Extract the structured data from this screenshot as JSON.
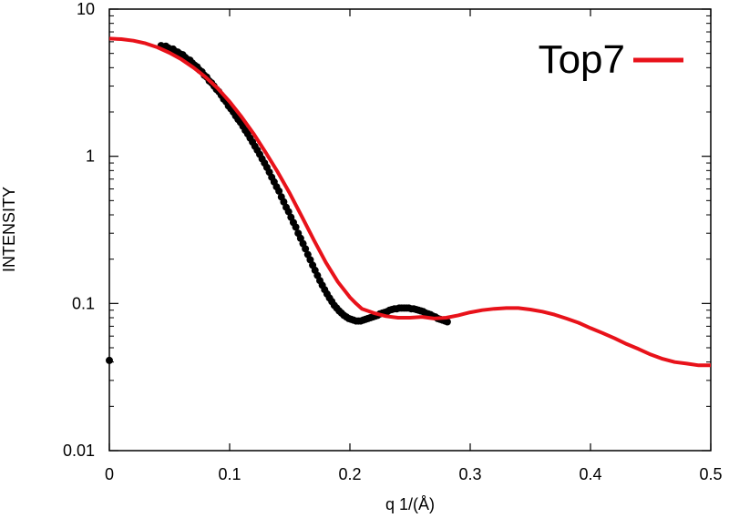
{
  "chart_data": {
    "type": "scatter",
    "title": "",
    "xlabel": "q 1/(Å)",
    "ylabel": "INTENSITY",
    "xlim": [
      0,
      0.5
    ],
    "ylim": [
      0.01,
      10
    ],
    "yscale": "log",
    "grid": false,
    "legend_position": "top-right",
    "x_ticks": [
      {
        "value": 0,
        "label": "0"
      },
      {
        "value": 0.1,
        "label": "0.1"
      },
      {
        "value": 0.2,
        "label": "0.2"
      },
      {
        "value": 0.3,
        "label": "0.3"
      },
      {
        "value": 0.4,
        "label": "0.4"
      },
      {
        "value": 0.5,
        "label": "0.5"
      }
    ],
    "y_ticks": [
      {
        "value": 0.01,
        "label": "0.01"
      },
      {
        "value": 0.1,
        "label": "0.1"
      },
      {
        "value": 1,
        "label": "1"
      },
      {
        "value": 10,
        "label": "10"
      }
    ],
    "series": [
      {
        "name": "",
        "kind": "points",
        "color": "#000000",
        "points": [
          [
            0.0,
            0.041
          ],
          [
            0.043,
            5.65
          ],
          [
            0.045,
            5.5
          ],
          [
            0.047,
            5.6
          ],
          [
            0.049,
            5.45
          ],
          [
            0.051,
            5.3
          ],
          [
            0.053,
            5.35
          ],
          [
            0.055,
            5.15
          ],
          [
            0.057,
            5.1
          ],
          [
            0.059,
            4.95
          ],
          [
            0.061,
            4.9
          ],
          [
            0.063,
            4.7
          ],
          [
            0.065,
            4.55
          ],
          [
            0.067,
            4.5
          ],
          [
            0.069,
            4.3
          ],
          [
            0.071,
            4.15
          ],
          [
            0.073,
            4.05
          ],
          [
            0.075,
            3.85
          ],
          [
            0.077,
            3.75
          ],
          [
            0.079,
            3.55
          ],
          [
            0.081,
            3.45
          ],
          [
            0.083,
            3.25
          ],
          [
            0.085,
            3.15
          ],
          [
            0.087,
            3.0
          ],
          [
            0.089,
            2.85
          ],
          [
            0.091,
            2.75
          ],
          [
            0.093,
            2.6
          ],
          [
            0.095,
            2.45
          ],
          [
            0.097,
            2.35
          ],
          [
            0.099,
            2.2
          ],
          [
            0.101,
            2.1
          ],
          [
            0.103,
            2.0
          ],
          [
            0.105,
            1.88
          ],
          [
            0.107,
            1.78
          ],
          [
            0.109,
            1.7
          ],
          [
            0.111,
            1.6
          ],
          [
            0.113,
            1.5
          ],
          [
            0.115,
            1.42
          ],
          [
            0.117,
            1.33
          ],
          [
            0.119,
            1.25
          ],
          [
            0.121,
            1.17
          ],
          [
            0.123,
            1.1
          ],
          [
            0.125,
            1.03
          ],
          [
            0.127,
            0.96
          ],
          [
            0.129,
            0.9
          ],
          [
            0.131,
            0.84
          ],
          [
            0.133,
            0.78
          ],
          [
            0.135,
            0.72
          ],
          [
            0.137,
            0.67
          ],
          [
            0.139,
            0.62
          ],
          [
            0.141,
            0.58
          ],
          [
            0.143,
            0.53
          ],
          [
            0.145,
            0.49
          ],
          [
            0.147,
            0.45
          ],
          [
            0.149,
            0.42
          ],
          [
            0.151,
            0.385
          ],
          [
            0.153,
            0.355
          ],
          [
            0.155,
            0.33
          ],
          [
            0.157,
            0.3
          ],
          [
            0.159,
            0.277
          ],
          [
            0.161,
            0.255
          ],
          [
            0.163,
            0.235
          ],
          [
            0.165,
            0.215
          ],
          [
            0.167,
            0.198
          ],
          [
            0.169,
            0.182
          ],
          [
            0.171,
            0.168
          ],
          [
            0.173,
            0.155
          ],
          [
            0.175,
            0.143
          ],
          [
            0.177,
            0.133
          ],
          [
            0.179,
            0.124
          ],
          [
            0.181,
            0.116
          ],
          [
            0.183,
            0.109
          ],
          [
            0.185,
            0.103
          ],
          [
            0.187,
            0.097
          ],
          [
            0.189,
            0.093
          ],
          [
            0.191,
            0.089
          ],
          [
            0.193,
            0.086
          ],
          [
            0.195,
            0.083
          ],
          [
            0.197,
            0.081
          ],
          [
            0.199,
            0.079
          ],
          [
            0.201,
            0.078
          ],
          [
            0.203,
            0.077
          ],
          [
            0.205,
            0.076
          ],
          [
            0.207,
            0.076
          ],
          [
            0.209,
            0.076
          ],
          [
            0.211,
            0.077
          ],
          [
            0.213,
            0.078
          ],
          [
            0.215,
            0.079
          ],
          [
            0.217,
            0.08
          ],
          [
            0.219,
            0.081
          ],
          [
            0.221,
            0.082
          ],
          [
            0.223,
            0.083
          ],
          [
            0.225,
            0.085
          ],
          [
            0.227,
            0.086
          ],
          [
            0.229,
            0.087
          ],
          [
            0.231,
            0.088
          ],
          [
            0.233,
            0.09
          ],
          [
            0.235,
            0.091
          ],
          [
            0.237,
            0.092
          ],
          [
            0.239,
            0.092
          ],
          [
            0.241,
            0.093
          ],
          [
            0.243,
            0.093
          ],
          [
            0.245,
            0.093
          ],
          [
            0.247,
            0.093
          ],
          [
            0.249,
            0.093
          ],
          [
            0.251,
            0.092
          ],
          [
            0.253,
            0.092
          ],
          [
            0.255,
            0.091
          ],
          [
            0.257,
            0.09
          ],
          [
            0.259,
            0.089
          ],
          [
            0.261,
            0.088
          ],
          [
            0.263,
            0.086
          ],
          [
            0.265,
            0.085
          ],
          [
            0.267,
            0.084
          ],
          [
            0.269,
            0.082
          ],
          [
            0.271,
            0.081
          ],
          [
            0.273,
            0.079
          ],
          [
            0.275,
            0.078
          ],
          [
            0.277,
            0.077
          ],
          [
            0.279,
            0.076
          ],
          [
            0.281,
            0.075
          ]
        ]
      },
      {
        "name": "Top7",
        "kind": "line",
        "color": "#e8121a",
        "points": [
          [
            0.0,
            6.3
          ],
          [
            0.01,
            6.25
          ],
          [
            0.02,
            6.1
          ],
          [
            0.03,
            5.85
          ],
          [
            0.04,
            5.5
          ],
          [
            0.05,
            5.05
          ],
          [
            0.06,
            4.55
          ],
          [
            0.07,
            4.0
          ],
          [
            0.08,
            3.45
          ],
          [
            0.09,
            2.9
          ],
          [
            0.1,
            2.35
          ],
          [
            0.11,
            1.85
          ],
          [
            0.12,
            1.42
          ],
          [
            0.13,
            1.06
          ],
          [
            0.14,
            0.78
          ],
          [
            0.15,
            0.56
          ],
          [
            0.16,
            0.39
          ],
          [
            0.17,
            0.27
          ],
          [
            0.18,
            0.19
          ],
          [
            0.19,
            0.14
          ],
          [
            0.2,
            0.11
          ],
          [
            0.205,
            0.1
          ],
          [
            0.21,
            0.092
          ],
          [
            0.22,
            0.086
          ],
          [
            0.23,
            0.082
          ],
          [
            0.24,
            0.08
          ],
          [
            0.25,
            0.08
          ],
          [
            0.26,
            0.081
          ],
          [
            0.27,
            0.079
          ],
          [
            0.28,
            0.08
          ],
          [
            0.29,
            0.083
          ],
          [
            0.3,
            0.087
          ],
          [
            0.31,
            0.09
          ],
          [
            0.32,
            0.092
          ],
          [
            0.33,
            0.093
          ],
          [
            0.34,
            0.093
          ],
          [
            0.35,
            0.091
          ],
          [
            0.36,
            0.088
          ],
          [
            0.37,
            0.084
          ],
          [
            0.38,
            0.079
          ],
          [
            0.39,
            0.074
          ],
          [
            0.4,
            0.068
          ],
          [
            0.41,
            0.063
          ],
          [
            0.42,
            0.058
          ],
          [
            0.43,
            0.053
          ],
          [
            0.44,
            0.049
          ],
          [
            0.45,
            0.045
          ],
          [
            0.46,
            0.042
          ],
          [
            0.47,
            0.04
          ],
          [
            0.48,
            0.039
          ],
          [
            0.49,
            0.038
          ],
          [
            0.5,
            0.038
          ]
        ]
      }
    ]
  }
}
